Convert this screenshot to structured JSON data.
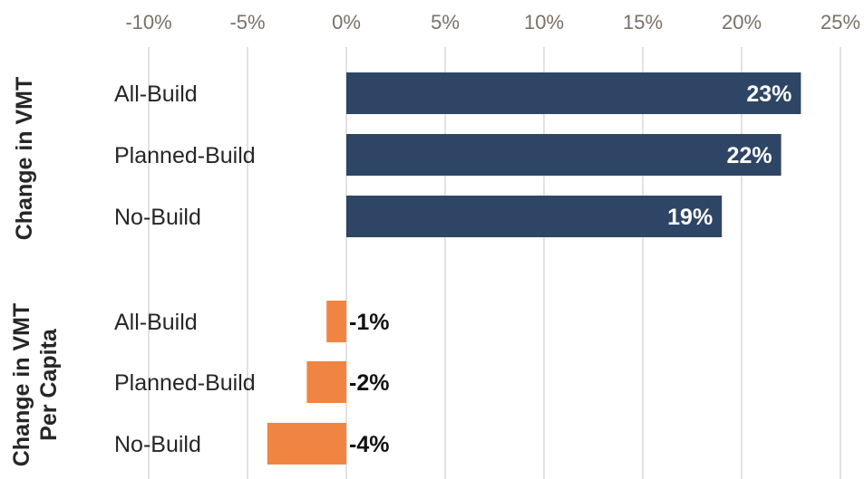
{
  "chart_data": {
    "type": "bar",
    "orientation": "horizontal",
    "xlim": [
      -10,
      25
    ],
    "x_ticks": [
      "-10%",
      "-5%",
      "0%",
      "5%",
      "10%",
      "15%",
      "20%",
      "25%"
    ],
    "x_tick_values": [
      -10,
      -5,
      0,
      5,
      10,
      15,
      20,
      25
    ],
    "x_axis_position": "top",
    "grid": true,
    "groups": [
      {
        "label": "Change in VMT",
        "color": "#2e4566",
        "categories": [
          "All-Build",
          "Planned-Build",
          "No-Build"
        ],
        "values": [
          23,
          22,
          19
        ],
        "value_labels": [
          "23%",
          "22%",
          "19%"
        ]
      },
      {
        "label": "Change in VMT Per Capita",
        "label_lines": [
          "Change in VMT",
          "Per Capita"
        ],
        "color": "#f08543",
        "categories": [
          "All-Build",
          "Planned-Build",
          "No-Build"
        ],
        "values": [
          -1,
          -2,
          -4
        ],
        "value_labels": [
          "-1%",
          "-2%",
          "-4%"
        ]
      }
    ]
  }
}
